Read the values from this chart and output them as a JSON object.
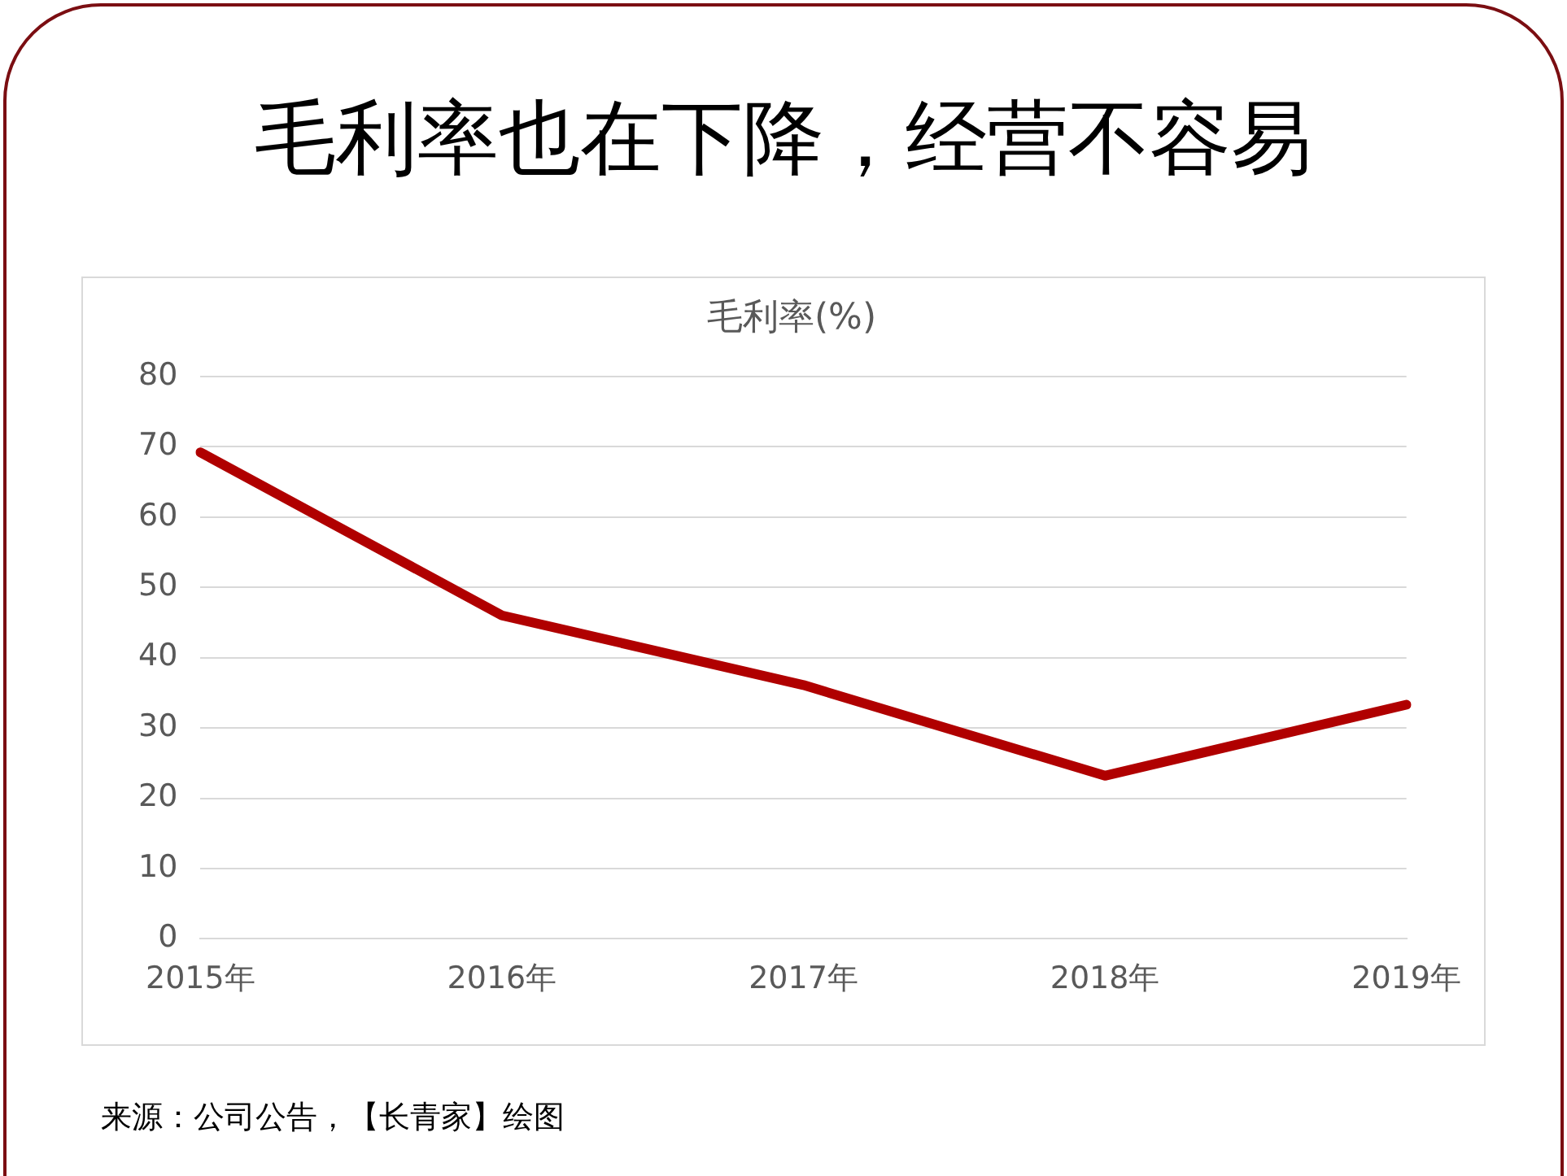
{
  "chart_data": {
    "type": "line",
    "title": "毛利率也在下降，经营不容易",
    "subtitle": "毛利率(%)",
    "categories": [
      "2015年",
      "2016年",
      "2017年",
      "2018年",
      "2019年"
    ],
    "series": [
      {
        "color": "#b00000",
        "values": [
          69.2,
          46.0,
          36.1,
          23.2,
          33.3
        ]
      }
    ],
    "ylim": [
      0,
      80
    ],
    "yticks": [
      0,
      10,
      20,
      30,
      40,
      50,
      60,
      70,
      80
    ],
    "grid": "y",
    "legend": false,
    "marker": "none",
    "line_style": "solid",
    "annotations": [
      "来源：公司公告，【长青家】绘图"
    ]
  }
}
